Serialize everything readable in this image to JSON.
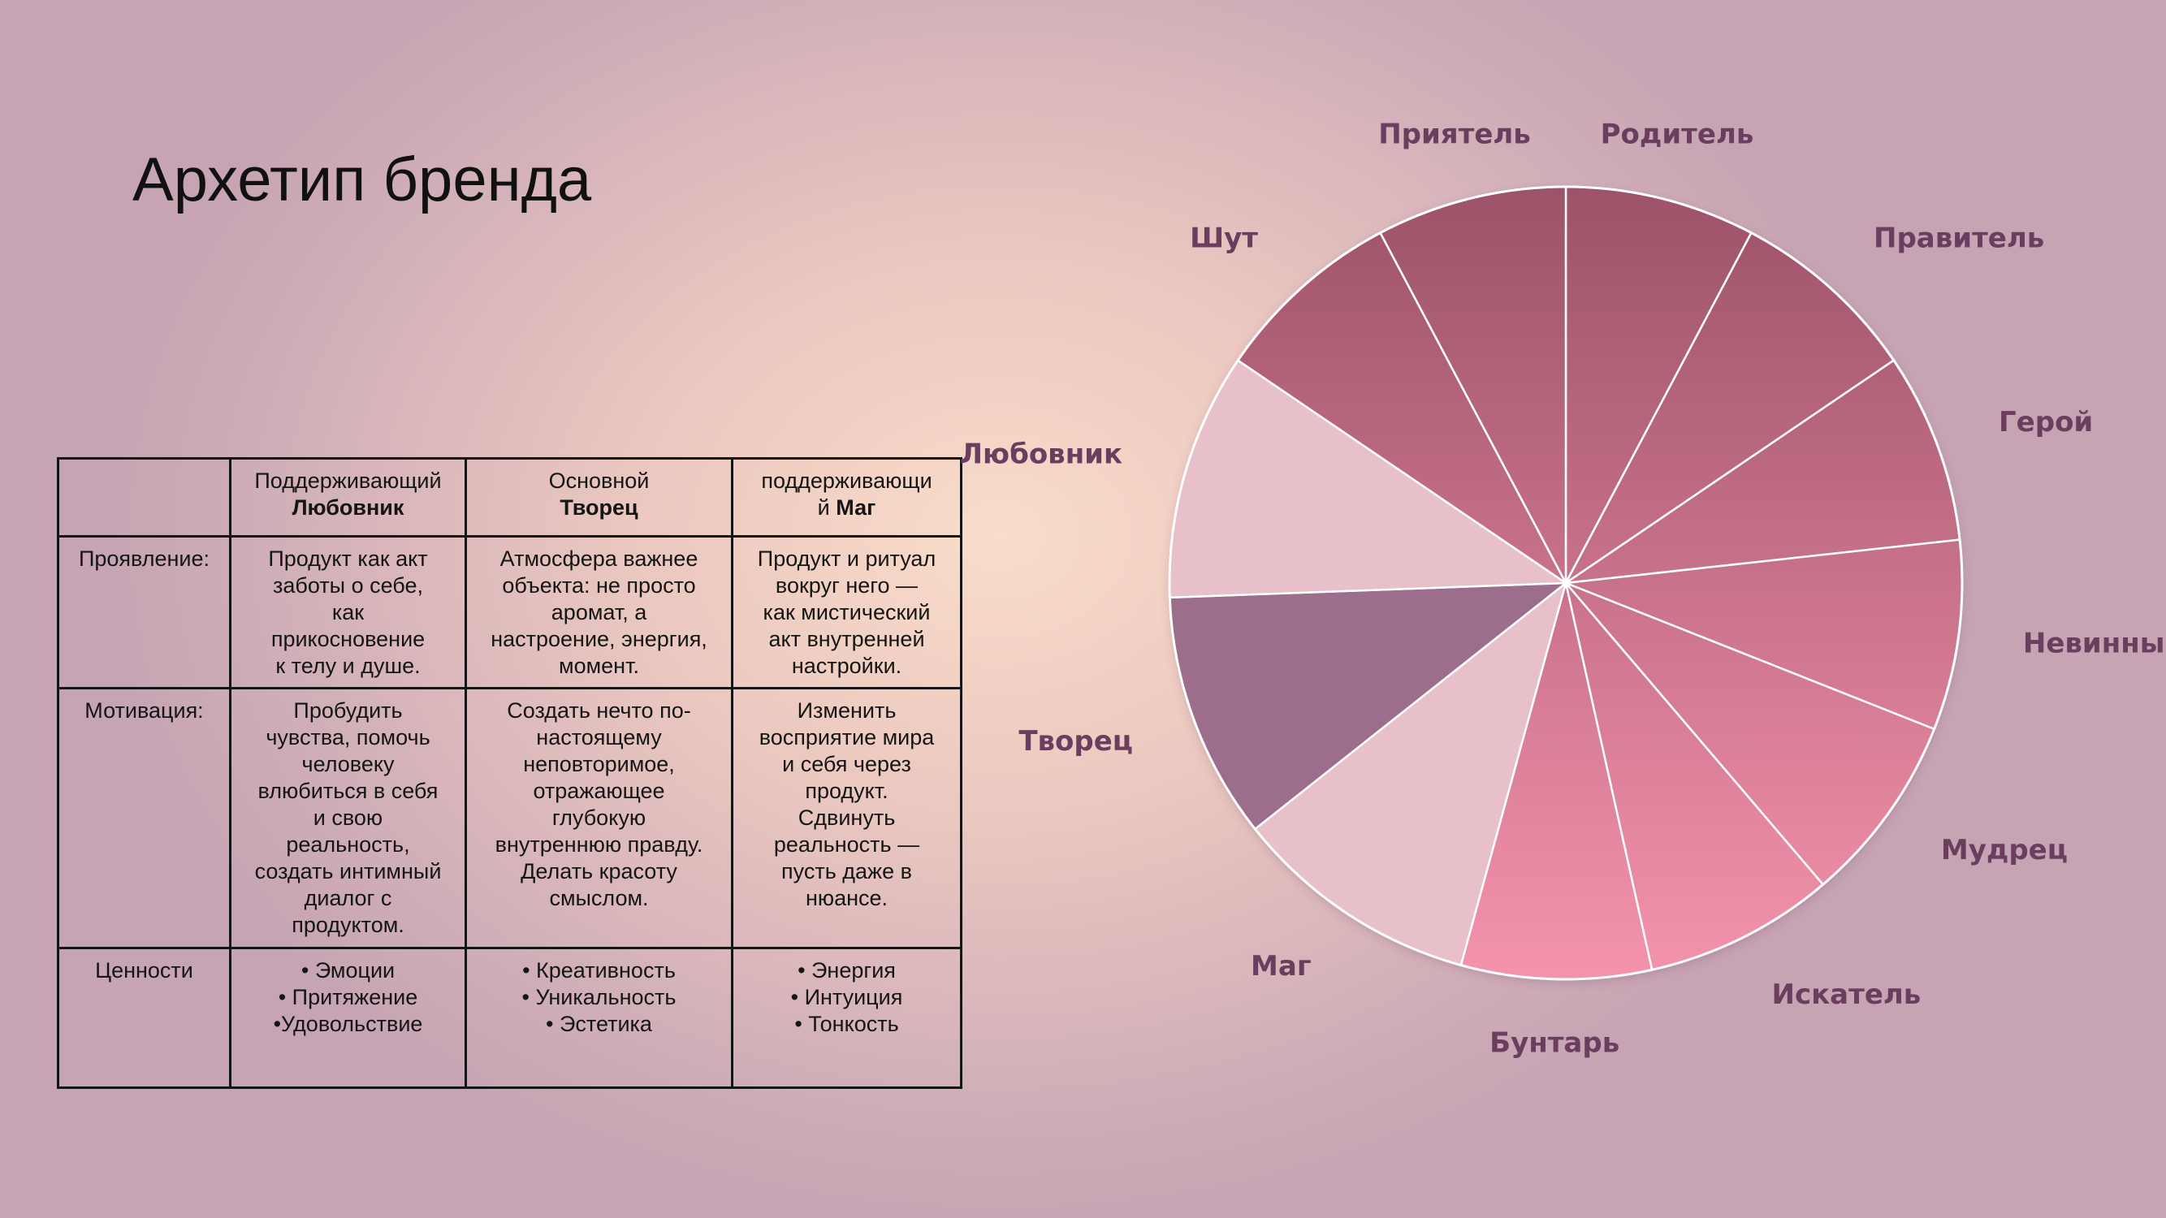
{
  "title": "Архетип бренда",
  "table": {
    "header": [
      {
        "line1": "Поддерживающий",
        "line2": "Любовник"
      },
      {
        "line1": "Основной",
        "line2": "Творец"
      },
      {
        "line1": "поддерживающи",
        "line2_prefix": "й ",
        "line2": "Маг"
      }
    ],
    "rows": [
      {
        "label": "Проявление:",
        "cells": [
          "Продукт как акт\nзаботы о себе,\nкак\nприкосновение\nк телу и душе.",
          "Атмосфера важнее\nобъекта: не просто\nаромат, а\nнастроение, энергия,\nмомент.",
          "Продукт и ритуал\nвокруг него —\nкак мистический\nакт внутренней\nнастройки."
        ]
      },
      {
        "label": "Мотивация:",
        "cells": [
          "Пробудить\nчувства, помочь\nчеловеку\nвлюбиться в себя\nи свою\nреальность,\nсоздать интимный\nдиалог с\nпродуктом.",
          "Создать нечто по-\nнастоящему\nнеповторимое,\nотражающее\nглубокую\nвнутреннюю правду.\nДелать красоту\nсмыслом.",
          "Изменить\nвосприятие мира\nи себя через\nпродукт.\nСдвинуть\nреальность —\nпусть даже в\nнюансе."
        ]
      },
      {
        "label": "Ценности",
        "cells": [
          "• Эмоции\n• Притяжение\n•Удовольствие",
          "• Креативность\n• Уникальность\n• Эстетика",
          "• Энергия\n• Интуиция\n• Тонкость"
        ]
      }
    ]
  },
  "chart_data": {
    "type": "pie",
    "title": "",
    "categories": [
      "Родитель",
      "Правитель",
      "Герой",
      "Невинный",
      "Мудрец",
      "Искатель",
      "Бунтарь",
      "Маг",
      "Творец",
      "Любовник",
      "Шут",
      "Приятель"
    ],
    "values": [
      1,
      1,
      1,
      1,
      1,
      1,
      1,
      1.3,
      1.3,
      1.3,
      1,
      1
    ],
    "colors": {
      "standard_top": "#9c5268",
      "standard_bottom": "#f593ac",
      "Маг": "#e7c0c9",
      "Любовник": "#e7c0c9",
      "Творец": "#9c6e8b",
      "label": "#6b3d5e",
      "slice_border": "#ffffff"
    },
    "legend": "labels-around"
  }
}
